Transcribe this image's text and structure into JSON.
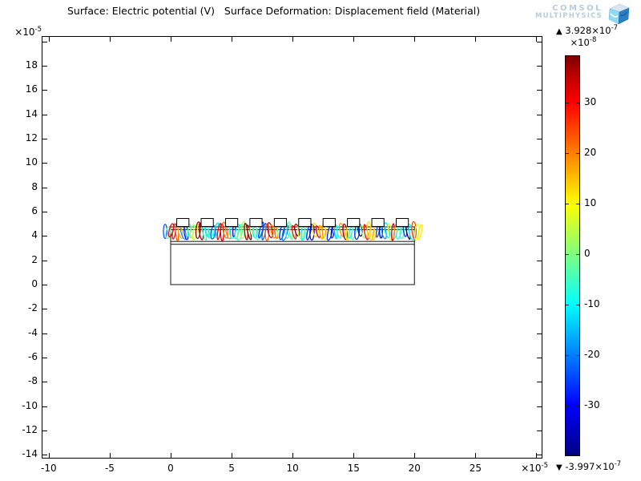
{
  "title": "Surface: Electric potential (V)   Surface Deformation: Displacement field (Material)",
  "logo": {
    "line1": "COMSOL",
    "line2": "MULTIPHYSICS"
  },
  "x_axis": {
    "mult_base": "×10",
    "mult_exp": "-5",
    "ticks": [
      -10,
      -5,
      0,
      5,
      10,
      15,
      20,
      25
    ],
    "unlabeled_ticks": [
      30
    ],
    "range": [
      -10.6,
      30.5
    ]
  },
  "y_axis": {
    "mult_base": "×10",
    "mult_exp": "-5",
    "ticks": [
      18,
      16,
      14,
      12,
      10,
      8,
      6,
      4,
      2,
      0,
      -2,
      -4,
      -6,
      -8,
      -10,
      -12,
      -14
    ],
    "unlabeled_ticks": [
      20
    ],
    "range": [
      -14.3,
      20.4
    ]
  },
  "colorbar": {
    "max_marker": "▲",
    "max_base": "3.928×10",
    "max_exp": "-7",
    "scale_base": "×10",
    "scale_exp": "-8",
    "min_marker": "▼",
    "min_base": "-3.997×10",
    "min_exp": "-7",
    "ticks": [
      30,
      20,
      10,
      0,
      -10,
      -20,
      -30
    ],
    "value_range": [
      -39.97,
      39.28
    ],
    "colormap": "rainbow"
  },
  "chart_data": {
    "type": "heatmap",
    "title": "Surface: Electric potential (V)   Surface Deformation: Displacement field (Material)",
    "xlabel": "",
    "ylabel": "",
    "x_unit_multiplier": "1e-5",
    "y_unit_multiplier": "1e-5",
    "x_ticks": [
      -10,
      -5,
      0,
      5,
      10,
      15,
      20,
      25
    ],
    "y_ticks": [
      18,
      16,
      14,
      12,
      10,
      8,
      6,
      4,
      2,
      0,
      -2,
      -4,
      -6,
      -8,
      -10,
      -12,
      -14
    ],
    "xlim": [
      -10.6,
      30.5
    ],
    "ylim": [
      -14.3,
      20.4
    ],
    "color_scale": {
      "quantity": "Electric potential (V)",
      "tick_scale": "1e-8",
      "max": 3.928e-07,
      "min": -3.997e-07,
      "tick_values": [
        30,
        20,
        10,
        0,
        -10,
        -20,
        -30
      ],
      "colormap_stops": [
        "#7f0000",
        "#ff0000",
        "#ff8000",
        "#ffff00",
        "#80ff80",
        "#00ffff",
        "#0080ff",
        "#0000ff",
        "#000080"
      ]
    },
    "geometry": {
      "substrate": {
        "x": [
          0,
          20
        ],
        "y": [
          0,
          4.75
        ]
      },
      "inner_boundaries_y": [
        4.52,
        3.55,
        3.32
      ],
      "electrodes": {
        "count": 10,
        "centers": [
          1,
          3,
          5,
          7,
          9,
          11,
          13,
          15,
          17,
          19
        ],
        "width": 1.0,
        "y_bottom": 4.78,
        "y_top": 5.44
      },
      "wave_band": {
        "x": [
          -0.45,
          20.45
        ],
        "y_center": 4.38,
        "loop_count": 86,
        "wavelength": 2.0
      }
    }
  }
}
